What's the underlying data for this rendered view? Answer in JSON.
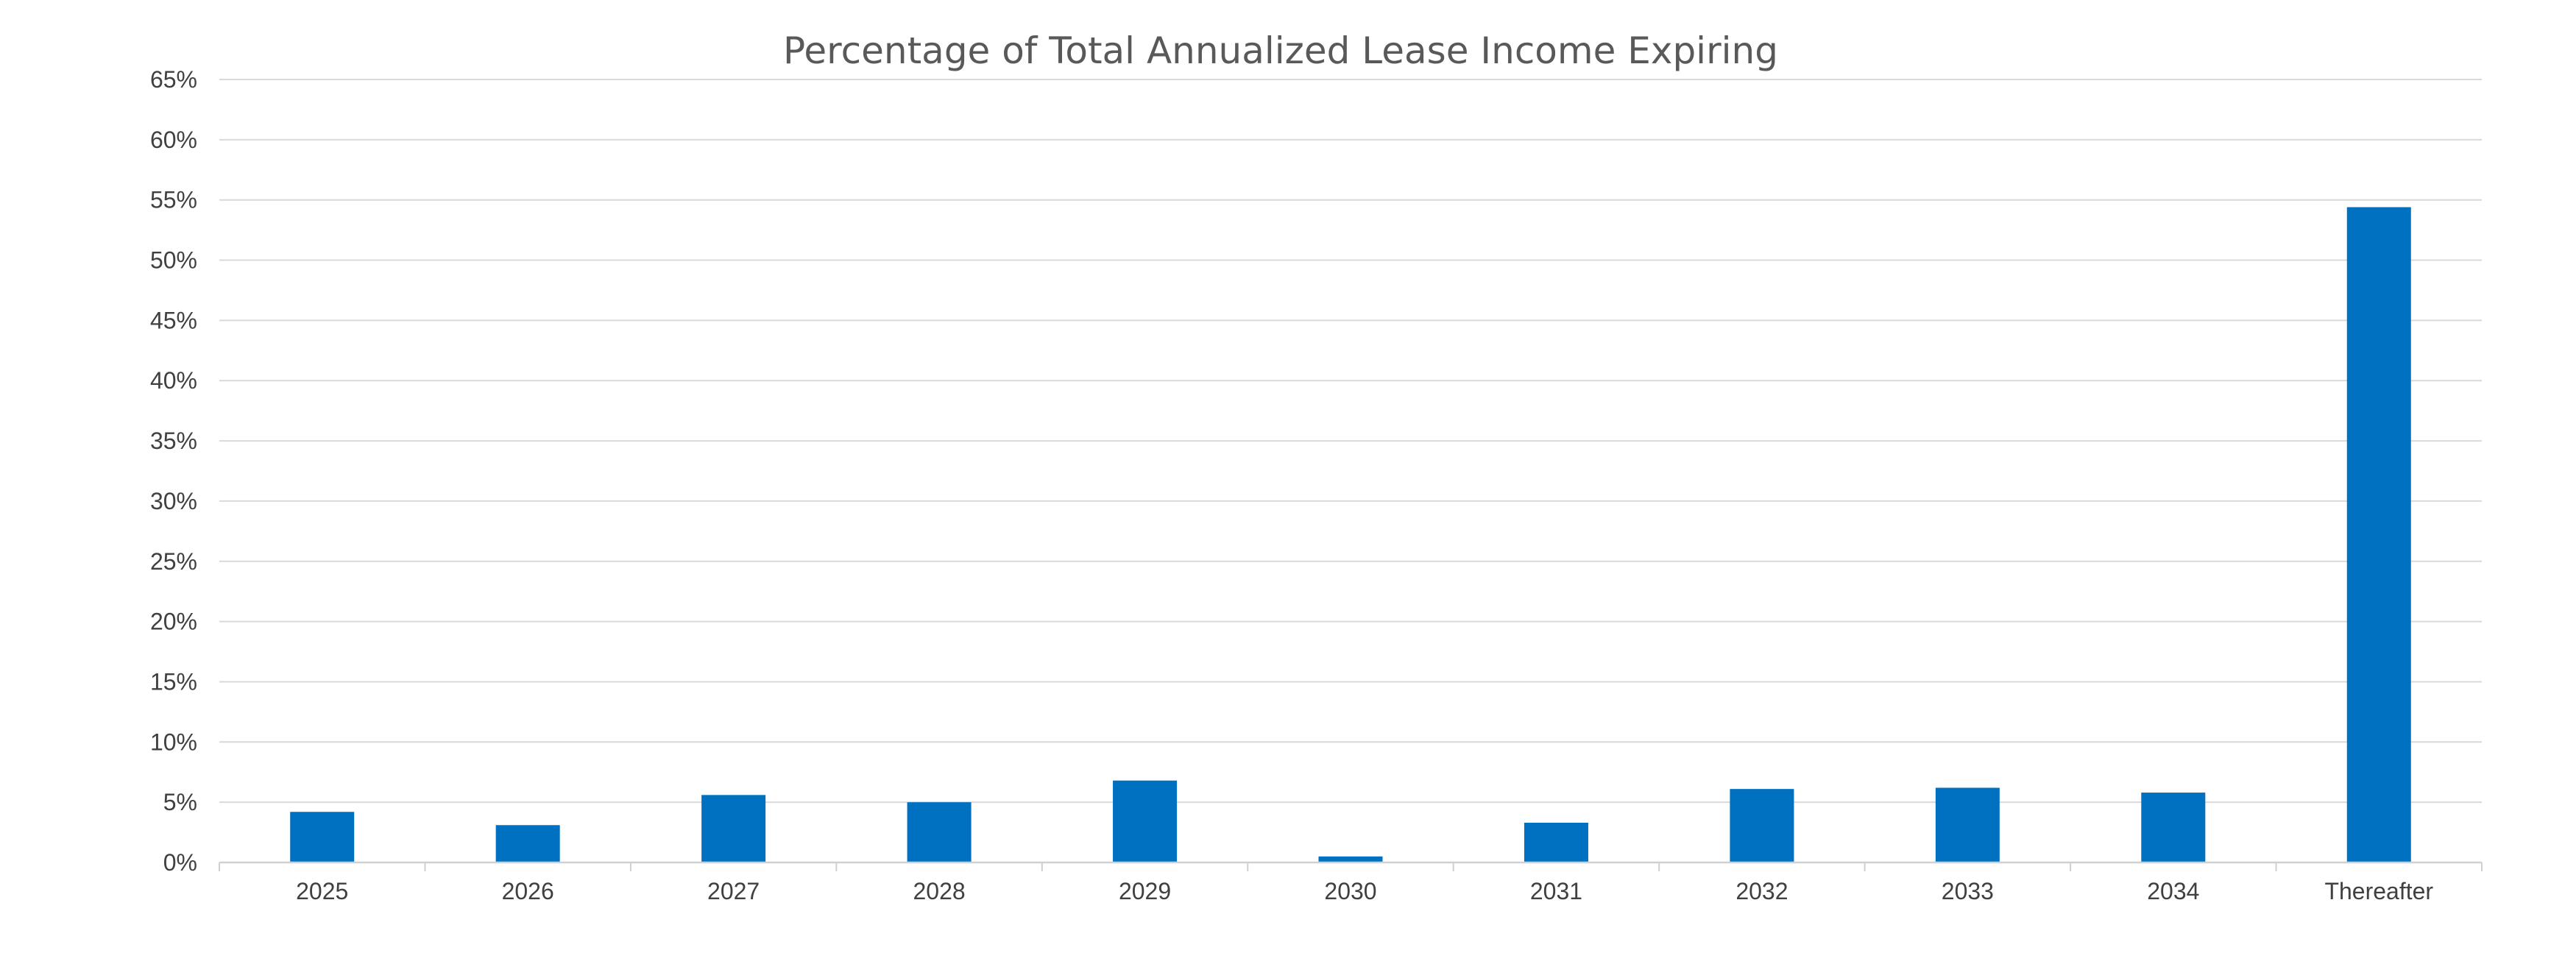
{
  "chart_data": {
    "type": "bar",
    "title": "Percentage of Total Annualized Lease Income Expiring",
    "xlabel": "",
    "ylabel": "",
    "categories": [
      "2025",
      "2026",
      "2027",
      "2028",
      "2029",
      "2030",
      "2031",
      "2032",
      "2033",
      "2034",
      "Thereafter"
    ],
    "values": [
      4.2,
      3.1,
      5.6,
      5.0,
      6.8,
      0.5,
      3.3,
      6.1,
      6.2,
      5.8,
      54.4
    ],
    "value_unit": "%",
    "ylim": [
      0,
      65
    ],
    "yticks": [
      0,
      5,
      10,
      15,
      20,
      25,
      30,
      35,
      40,
      45,
      50,
      55,
      60,
      65
    ],
    "ytick_labels": [
      "0%",
      "5%",
      "10%",
      "15%",
      "20%",
      "25%",
      "30%",
      "35%",
      "40%",
      "45%",
      "50%",
      "55%",
      "60%",
      "65%"
    ],
    "grid": true,
    "legend": "none",
    "bar_color": "#0070C0"
  }
}
